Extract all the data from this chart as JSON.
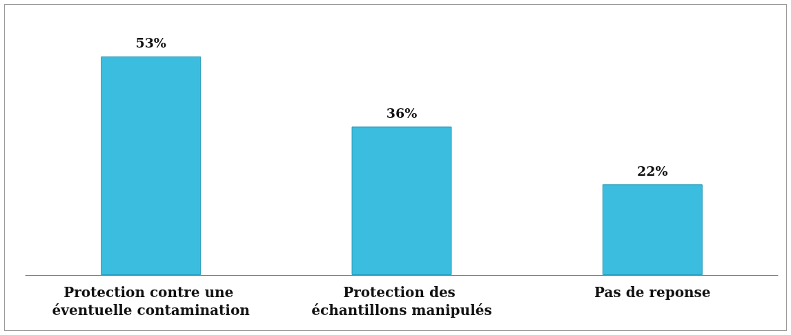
{
  "chart_data": {
    "type": "bar",
    "categories": [
      "Protection contre une éventuelle contamination",
      "Protection des échantillons manipulés",
      "Pas de reponse"
    ],
    "values": [
      53,
      36,
      22
    ],
    "value_labels": [
      "53%",
      "36%",
      "22%"
    ],
    "color": "#3bbde0"
  }
}
